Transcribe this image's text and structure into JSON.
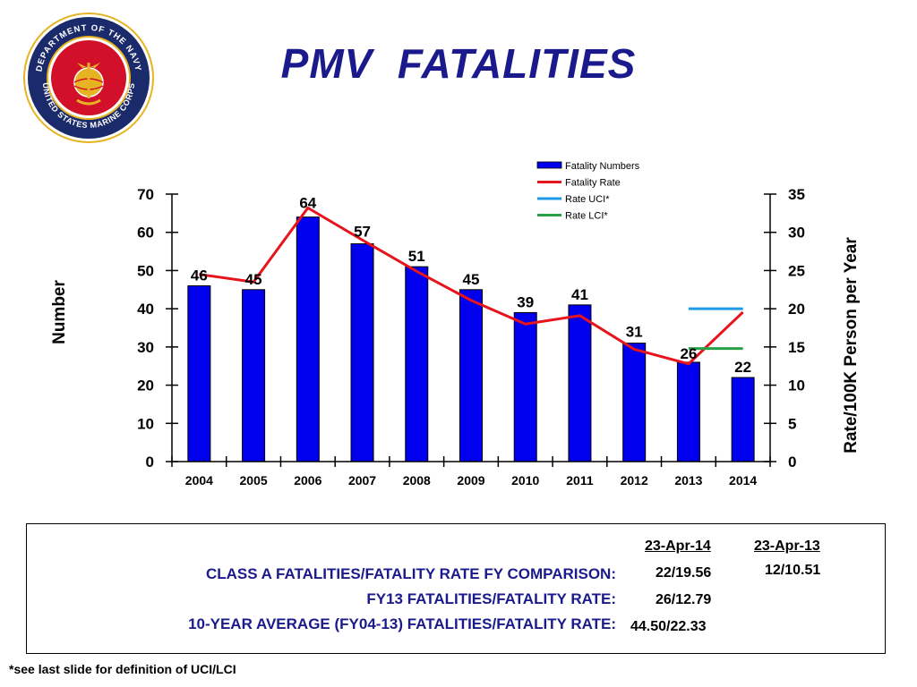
{
  "slide": {
    "title": "PMV  FATALITIES",
    "footnote": "*see last slide for definition of UCI/LCI"
  },
  "seal": {
    "text": "DEPARTMENT OF THE NAVY · UNITED STATES MARINE CORPS",
    "colors": {
      "outer": "#1b2a6b",
      "inner": "#d2102a",
      "gold": "#e6b422"
    }
  },
  "chart_data": {
    "type": "bar",
    "categories": [
      "2004",
      "2005",
      "2006",
      "2007",
      "2008",
      "2009",
      "2010",
      "2011",
      "2012",
      "2013",
      "2014"
    ],
    "series": [
      {
        "name": "Fatality Numbers",
        "type": "bar",
        "axis": "left",
        "color": "#0000ee",
        "values": [
          46,
          45,
          64,
          57,
          51,
          45,
          39,
          41,
          31,
          26,
          22
        ]
      },
      {
        "name": "Fatality Rate",
        "type": "line",
        "axis": "right",
        "color": "#e8141c",
        "values": [
          24.5,
          23.5,
          33.2,
          29.0,
          24.9,
          21.1,
          18.0,
          19.1,
          14.7,
          12.79,
          19.56
        ]
      },
      {
        "name": "Rate UCI*",
        "type": "line",
        "axis": "right",
        "color": "#1e9be8",
        "x": [
          "2013",
          "2014"
        ],
        "values": [
          20.0,
          20.0
        ]
      },
      {
        "name": "Rate LCI*",
        "type": "line",
        "axis": "right",
        "color": "#27a048",
        "x": [
          "2013",
          "2014"
        ],
        "values": [
          14.8,
          14.8
        ]
      }
    ],
    "data_labels": [
      "46",
      "45",
      "64",
      "57",
      "51",
      "45",
      "39",
      "41",
      "31",
      "26",
      "22"
    ],
    "ylabel": "Number",
    "y2label": "Rate/100K Person per Year",
    "ylim": [
      0,
      70
    ],
    "y2lim": [
      0,
      35
    ],
    "yticks": [
      "0",
      "10",
      "20",
      "30",
      "40",
      "50",
      "60",
      "70"
    ],
    "y2ticks": [
      "0",
      "5",
      "10",
      "15",
      "20",
      "25",
      "30",
      "35"
    ],
    "grid": false,
    "legend_position": "top-right"
  },
  "summary": {
    "col_headers": [
      "23-Apr-14",
      "23-Apr-13"
    ],
    "rows": [
      {
        "label": "CLASS A FATALITIES/FATALITY RATE FY COMPARISON:",
        "values": [
          "22/19.56",
          "12/10.51"
        ]
      },
      {
        "label": "FY13 FATALITIES/FATALITY RATE:",
        "values": [
          "26/12.79"
        ]
      },
      {
        "label": "10-YEAR AVERAGE (FY04-13) FATALITIES/FATALITY RATE:",
        "values": [
          "44.50/22.33"
        ]
      }
    ]
  }
}
